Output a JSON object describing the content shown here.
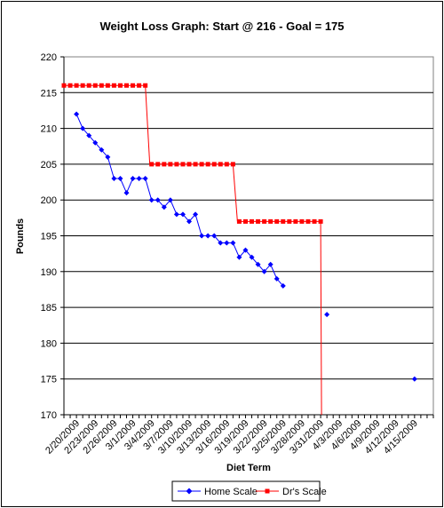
{
  "chart_data": {
    "type": "line",
    "title": "Weight Loss Graph: Start @ 216 - Goal = 175",
    "xlabel": "Diet Term",
    "ylabel": "Pounds",
    "ylim": [
      170,
      220
    ],
    "y_ticks": [
      170,
      175,
      180,
      185,
      190,
      195,
      200,
      205,
      210,
      215,
      220
    ],
    "x_range": [
      "2009-02-18",
      "2009-04-18"
    ],
    "x_tick_labels": [
      "2/20/2009",
      "2/23/2009",
      "2/26/2009",
      "3/1/2009",
      "3/4/2009",
      "3/7/2009",
      "3/10/2009",
      "3/13/2009",
      "3/16/2009",
      "3/19/2009",
      "3/22/2009",
      "3/25/2009",
      "3/28/2009",
      "3/31/2009",
      "4/3/2009",
      "4/6/2009",
      "4/9/2009",
      "4/12/2009",
      "4/15/2009"
    ],
    "grid": "horizontal",
    "legend_position": "bottom",
    "series": [
      {
        "name": "Home Scale",
        "color": "#0000FF",
        "marker": "diamond",
        "points": [
          [
            "2009-02-20",
            212
          ],
          [
            "2009-02-21",
            210
          ],
          [
            "2009-02-22",
            209
          ],
          [
            "2009-02-23",
            208
          ],
          [
            "2009-02-24",
            207
          ],
          [
            "2009-02-25",
            206
          ],
          [
            "2009-02-26",
            203
          ],
          [
            "2009-02-27",
            203
          ],
          [
            "2009-02-28",
            201
          ],
          [
            "2009-03-01",
            203
          ],
          [
            "2009-03-02",
            203
          ],
          [
            "2009-03-03",
            203
          ],
          [
            "2009-03-04",
            200
          ],
          [
            "2009-03-05",
            200
          ],
          [
            "2009-03-06",
            199
          ],
          [
            "2009-03-07",
            200
          ],
          [
            "2009-03-08",
            198
          ],
          [
            "2009-03-09",
            198
          ],
          [
            "2009-03-10",
            197
          ],
          [
            "2009-03-11",
            198
          ],
          [
            "2009-03-12",
            195
          ],
          [
            "2009-03-13",
            195
          ],
          [
            "2009-03-14",
            195
          ],
          [
            "2009-03-15",
            194
          ],
          [
            "2009-03-16",
            194
          ],
          [
            "2009-03-17",
            194
          ],
          [
            "2009-03-18",
            192
          ],
          [
            "2009-03-19",
            193
          ],
          [
            "2009-03-20",
            192
          ],
          [
            "2009-03-21",
            191
          ],
          [
            "2009-03-22",
            190
          ],
          [
            "2009-03-23",
            191
          ],
          [
            "2009-03-24",
            189
          ],
          [
            "2009-03-25",
            188
          ]
        ],
        "extra_points": [
          [
            "2009-04-01",
            184
          ],
          [
            "2009-04-15",
            175
          ]
        ]
      },
      {
        "name": "Dr's Scale",
        "color": "#FF0000",
        "marker": "square",
        "segments": [
          {
            "from": "2009-02-18",
            "to": "2009-03-03",
            "value": 216
          },
          {
            "from": "2009-03-04",
            "to": "2009-03-17",
            "value": 205
          },
          {
            "from": "2009-03-18",
            "to": "2009-03-31",
            "value": 197
          }
        ],
        "drops": [
          {
            "date": "2009-03-03",
            "from": 216,
            "to": 205
          },
          {
            "date": "2009-03-17",
            "from": 205,
            "to": 197
          },
          {
            "date": "2009-03-31",
            "from": 197,
            "to": 170
          }
        ]
      }
    ]
  }
}
